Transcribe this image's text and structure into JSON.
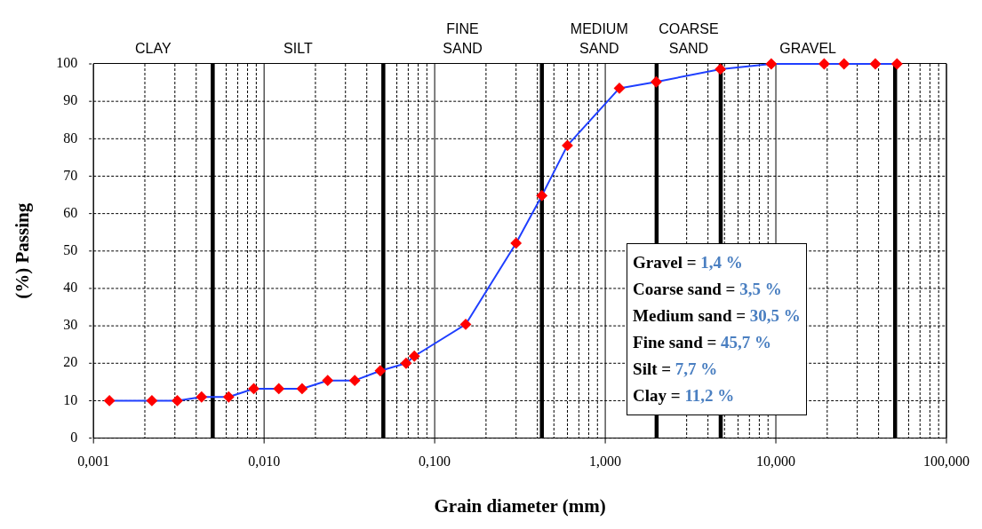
{
  "chart_data": {
    "type": "line",
    "xlabel": "Grain diameter (mm)",
    "ylabel": "(%) Passing",
    "x": [
      0.00124,
      0.0022,
      0.0031,
      0.0043,
      0.0062,
      0.0087,
      0.0122,
      0.0167,
      0.0236,
      0.034,
      0.048,
      0.068,
      0.076,
      0.152,
      0.3,
      0.425,
      0.6,
      1.21,
      1.99,
      4.73,
      9.4,
      19.2,
      25.1,
      38.3,
      51.3
    ],
    "series": [
      {
        "color": "#1f3fff",
        "colors": [
          "#ff0000",
          "#ff0000",
          "#ff0000",
          "#ff0000",
          "#ff0000",
          "#ff0000",
          "#ff0000",
          "#ff0000",
          "#ff0000",
          "#ff0000",
          "#ff0000",
          "#ff0000",
          "#ff0000",
          "#ff0000",
          "#ff0000",
          "#ff0000",
          "#ff0000",
          "#ff0000",
          "#ff0000",
          "#ff0000",
          "#ff0000",
          "#ff0000",
          "#ff0000",
          "#ff0000",
          "#ff0000"
        ],
        "values": [
          10,
          10,
          10,
          11,
          11,
          13.2,
          13.2,
          13.2,
          15.4,
          15.4,
          18,
          20,
          21.9,
          30.4,
          52.1,
          64.8,
          78.2,
          93.5,
          95.2,
          98.6,
          100,
          100,
          100,
          100,
          100
        ]
      }
    ],
    "log": "x",
    "xlim": [
      0.001,
      100
    ],
    "ylim": [
      0,
      100
    ],
    "xticks": [
      {
        "value": 0.001,
        "label": "0,001"
      },
      {
        "value": 0.01,
        "label": "0,010"
      },
      {
        "value": 0.1,
        "label": "0,100"
      },
      {
        "value": 1,
        "label": "1,000"
      },
      {
        "value": 10,
        "label": "10,000"
      },
      {
        "value": 100,
        "label": "100,000"
      }
    ],
    "yticks": [
      0,
      10,
      20,
      30,
      40,
      50,
      60,
      70,
      80,
      90,
      100
    ],
    "grid": true,
    "legend": false,
    "marker": "diamond",
    "ref_lines": [
      {
        "axis": "x",
        "value": 0.005,
        "color": "#000000"
      },
      {
        "axis": "x",
        "value": 0.05,
        "color": "#000000"
      },
      {
        "axis": "x",
        "value": 0.425,
        "color": "#000000"
      },
      {
        "axis": "x",
        "value": 2,
        "color": "#000000"
      },
      {
        "axis": "x",
        "value": 4.75,
        "color": "#000000"
      },
      {
        "axis": "x",
        "value": 50,
        "color": "#000000"
      }
    ],
    "annotations": [
      "CLAY",
      "SILT",
      "FINE SAND",
      "MEDIUM SAND",
      "COARSE SAND",
      "GRAVEL",
      "Gravel = 1,4 %",
      "Coarse sand = 3,5 %",
      "Medium sand = 30,5 %",
      "Fine sand = 45,7 %",
      "Silt = 7,7 %",
      "Clay = 11,2 %"
    ]
  }
}
